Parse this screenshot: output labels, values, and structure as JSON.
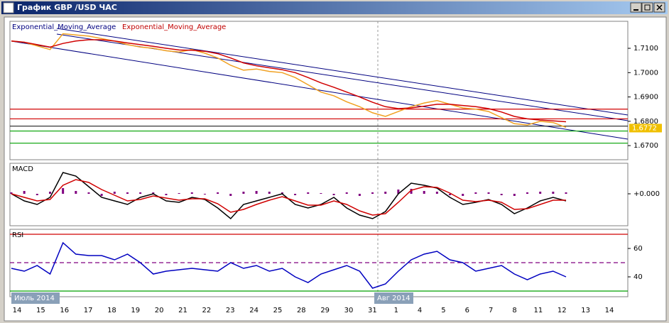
{
  "window": {
    "title": "График GBP /USD ЧАС"
  },
  "x_labels": [
    "14",
    "15",
    "16",
    "17",
    "18",
    "19",
    "20",
    "21",
    "22",
    "23",
    "24",
    "25",
    "28",
    "29",
    "30",
    "31",
    "1",
    "4",
    "5",
    "6",
    "7",
    "8",
    "11",
    "12",
    "13",
    "14"
  ],
  "months": [
    "Июль 2014",
    "Авг 2014"
  ],
  "chart_data": [
    {
      "type": "line",
      "legend": [
        {
          "text": "Exponential_Moving_Average",
          "color": "#000080"
        },
        {
          "text": "Exponential_Moving_Average",
          "color": "#c00000"
        }
      ],
      "ylim": [
        1.6642,
        1.7211
      ],
      "yticks": [
        {
          "value": 1.71,
          "label": "1.7100"
        },
        {
          "value": 1.7,
          "label": "1.7000"
        },
        {
          "value": 1.69,
          "label": "1.6900"
        },
        {
          "value": 1.68,
          "label": "1.6800"
        },
        {
          "value": 1.67,
          "label": "1.6700"
        }
      ],
      "levels": [
        {
          "value": 1.685,
          "color": "#d00000"
        },
        {
          "value": 1.681,
          "color": "#d00000"
        },
        {
          "value": 1.678,
          "color": "#202020"
        },
        {
          "value": 1.676,
          "color": "#00a000"
        },
        {
          "value": 1.671,
          "color": "#00a000"
        }
      ],
      "last_value": 1.6772,
      "series": [
        {
          "color": "#f0a020",
          "values": [
            1.713,
            1.7125,
            1.711,
            1.7095,
            1.716,
            1.7155,
            1.715,
            1.714,
            1.713,
            1.7115,
            1.7105,
            1.71,
            1.709,
            1.7085,
            1.7095,
            1.708,
            1.706,
            1.703,
            1.701,
            1.7015,
            1.7005,
            1.7,
            1.698,
            1.695,
            1.692,
            1.6905,
            1.688,
            1.686,
            1.6835,
            1.682,
            1.684,
            1.686,
            1.6875,
            1.6885,
            1.687,
            1.6855,
            1.685,
            1.684,
            1.6815,
            1.679,
            1.6785,
            1.68,
            1.6795,
            1.6775
          ]
        },
        {
          "color": "#d00000",
          "values": [
            1.713,
            1.7125,
            1.7115,
            1.7105,
            1.712,
            1.713,
            1.7135,
            1.7135,
            1.713,
            1.7122,
            1.7115,
            1.7108,
            1.71,
            1.7093,
            1.7092,
            1.7088,
            1.7078,
            1.706,
            1.704,
            1.7028,
            1.702,
            1.7012,
            1.7,
            1.698,
            1.6958,
            1.694,
            1.692,
            1.69,
            1.6878,
            1.686,
            1.6852,
            1.6855,
            1.6862,
            1.687,
            1.687,
            1.6865,
            1.686,
            1.6852,
            1.6838,
            1.682,
            1.681,
            1.6805,
            1.6802,
            1.6798
          ]
        }
      ]
    },
    {
      "type": "line",
      "title": "MACD",
      "ylim": [
        -0.0045,
        0.0043
      ],
      "yticks": [
        {
          "value": 0,
          "label": "+0.000"
        }
      ],
      "series": [
        {
          "color": "#800080",
          "kind": "bars",
          "values": [
            0.0002,
            0.0004,
            -0.0002,
            0.0003,
            0.0008,
            0.0004,
            0.0002,
            -0.0003,
            0.0003,
            0.0002,
            0.0002,
            0.0002,
            -0.0002,
            0.0001,
            0.0002,
            -0.0001,
            0.0002,
            -0.0003,
            0.0003,
            0.0004,
            0.0003,
            0.0002,
            -0.0002,
            0.0002,
            0.0001,
            -0.0002,
            0.0002,
            -0.0003,
            0.0002,
            0.0003,
            0.0006,
            0.0007,
            0.0004,
            0.0003,
            -0.0002,
            -0.0003,
            0.0002,
            0.0002,
            -0.0002,
            -0.0003,
            0.0002,
            0.0003,
            0.0003,
            0.0002
          ]
        },
        {
          "color": "#000000",
          "values": [
            0.0,
            -0.001,
            -0.0015,
            -0.0005,
            0.003,
            0.0025,
            0.001,
            -0.0005,
            -0.001,
            -0.0015,
            -0.0005,
            0.0,
            -0.001,
            -0.0012,
            -0.0005,
            -0.0008,
            -0.002,
            -0.0035,
            -0.0015,
            -0.001,
            -0.0005,
            0.0,
            -0.0015,
            -0.002,
            -0.0015,
            -0.0005,
            -0.002,
            -0.003,
            -0.0035,
            -0.0025,
            0.0,
            0.0015,
            0.0012,
            0.0008,
            -0.0005,
            -0.0015,
            -0.0012,
            -0.0008,
            -0.0015,
            -0.0028,
            -0.002,
            -0.001,
            -0.0005,
            -0.001
          ]
        },
        {
          "color": "#d00000",
          "values": [
            0.0,
            -0.0005,
            -0.001,
            -0.0008,
            0.0012,
            0.002,
            0.0016,
            0.0006,
            -0.0002,
            -0.001,
            -0.0008,
            -0.0003,
            -0.0006,
            -0.0009,
            -0.0007,
            -0.0007,
            -0.0014,
            -0.0026,
            -0.0022,
            -0.0015,
            -0.0009,
            -0.0004,
            -0.001,
            -0.0016,
            -0.0016,
            -0.001,
            -0.0015,
            -0.0024,
            -0.003,
            -0.0028,
            -0.0012,
            0.0005,
            0.001,
            0.0009,
            0.0001,
            -0.0009,
            -0.0011,
            -0.0009,
            -0.0012,
            -0.0022,
            -0.0021,
            -0.0015,
            -0.0009,
            -0.0009
          ]
        }
      ]
    },
    {
      "type": "line",
      "title": "RSI",
      "ylim": [
        26,
        73.5
      ],
      "yticks": [
        60,
        40
      ],
      "levels": [
        {
          "value": 70,
          "color": "#d00000"
        },
        {
          "value": 50,
          "color": "#800080",
          "dashed": true
        },
        {
          "value": 30,
          "color": "#00a000"
        }
      ],
      "series": [
        {
          "color": "#0000c0",
          "values": [
            46,
            44,
            48,
            42,
            64,
            56,
            55,
            55,
            52,
            56,
            50,
            42,
            44,
            45,
            46,
            45,
            44,
            50,
            46,
            48,
            44,
            46,
            40,
            36,
            42,
            45,
            48,
            44,
            32,
            35,
            44,
            52,
            56,
            58,
            52,
            50,
            44,
            46,
            48,
            42,
            38,
            42,
            44,
            40
          ]
        }
      ]
    }
  ]
}
